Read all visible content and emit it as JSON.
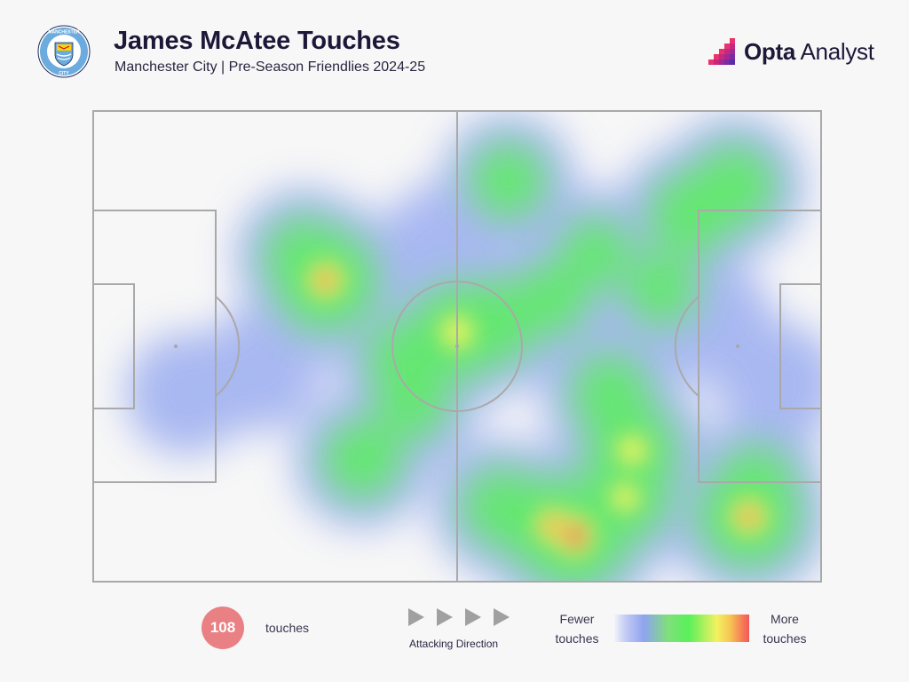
{
  "header": {
    "title": "James McAtee Touches",
    "subtitle": "Manchester City | Pre-Season Friendlies 2024-25",
    "crest_text": "MANCHESTER",
    "crest_text_bottom": "CITY",
    "brand_bold": "Opta",
    "brand_light": " Analyst"
  },
  "colors": {
    "title": "#1d1838",
    "pitch_lines": "#a9a9a9",
    "count_badge": "#e98084",
    "brand_accent": "#e8336e",
    "heat_low": "#8ea3ef",
    "heat_mid": "#59f05a",
    "heat_high": "#f25757"
  },
  "footer": {
    "touch_count": "108",
    "touch_label": "touches",
    "direction_label": "Attacking Direction",
    "legend_low": "Fewer touches",
    "legend_high": "More touches"
  },
  "chart_data": {
    "type": "heatmap",
    "title": "James McAtee Touches",
    "subtitle": "Manchester City | Pre-Season Friendlies 2024-25",
    "total_touches": 108,
    "attacking_direction": "left-to-right",
    "x_range": [
      0,
      100
    ],
    "y_range": [
      0,
      100
    ],
    "legend": {
      "low": "Fewer touches",
      "high": "More touches",
      "placement": "bottom-right"
    },
    "hotspots": [
      {
        "x": 66,
        "y": 90,
        "intensity": 1.0
      },
      {
        "x": 63,
        "y": 88,
        "intensity": 0.85
      },
      {
        "x": 73,
        "y": 82,
        "intensity": 0.7
      },
      {
        "x": 74,
        "y": 72,
        "intensity": 0.75
      },
      {
        "x": 71,
        "y": 60,
        "intensity": 0.55
      },
      {
        "x": 90,
        "y": 86,
        "intensity": 0.9
      },
      {
        "x": 91,
        "y": 79,
        "intensity": 0.5
      },
      {
        "x": 32,
        "y": 36,
        "intensity": 0.9
      },
      {
        "x": 29,
        "y": 31,
        "intensity": 0.55
      },
      {
        "x": 50,
        "y": 47,
        "intensity": 0.8
      },
      {
        "x": 55,
        "y": 45,
        "intensity": 0.65
      },
      {
        "x": 43,
        "y": 53,
        "intensity": 0.55
      },
      {
        "x": 37,
        "y": 74,
        "intensity": 0.55
      },
      {
        "x": 44,
        "y": 62,
        "intensity": 0.45
      },
      {
        "x": 56,
        "y": 84,
        "intensity": 0.55
      },
      {
        "x": 57,
        "y": 15,
        "intensity": 0.5
      },
      {
        "x": 88,
        "y": 16,
        "intensity": 0.6
      },
      {
        "x": 82,
        "y": 22,
        "intensity": 0.6
      },
      {
        "x": 78,
        "y": 38,
        "intensity": 0.45
      },
      {
        "x": 63,
        "y": 40,
        "intensity": 0.45
      },
      {
        "x": 69,
        "y": 30,
        "intensity": 0.4
      },
      {
        "x": 94,
        "y": 58,
        "intensity": 0.35
      },
      {
        "x": 13,
        "y": 60,
        "intensity": 0.35
      },
      {
        "x": 23,
        "y": 55,
        "intensity": 0.35
      },
      {
        "x": 48,
        "y": 28,
        "intensity": 0.3
      },
      {
        "x": 85,
        "y": 45,
        "intensity": 0.35
      }
    ]
  }
}
